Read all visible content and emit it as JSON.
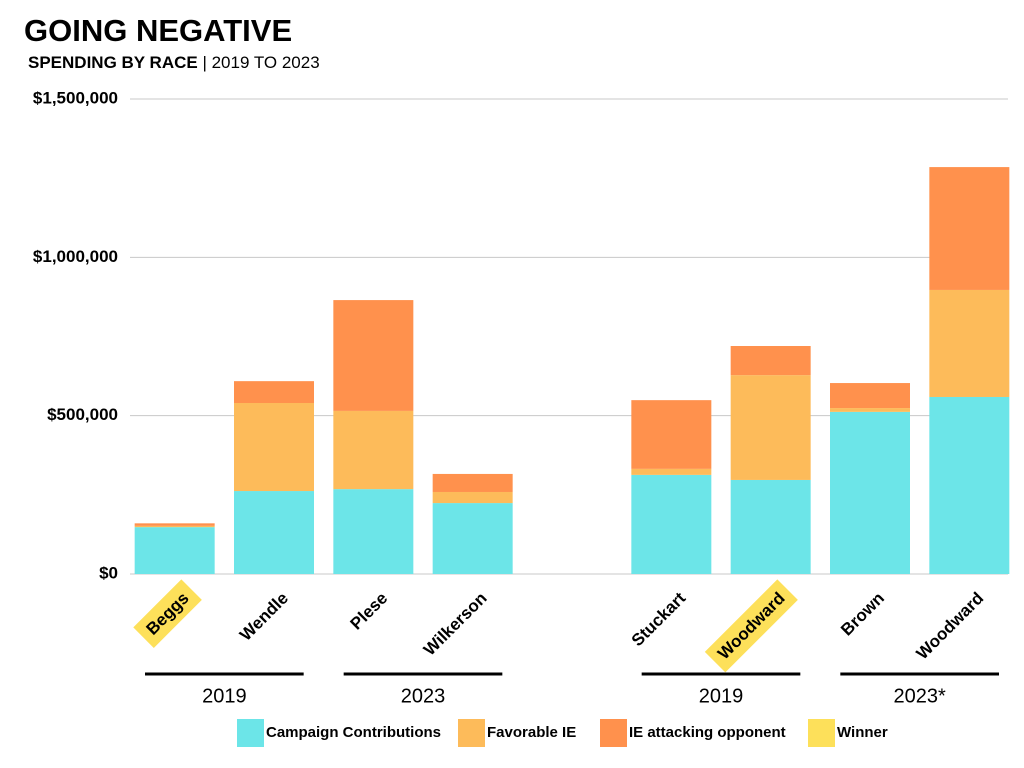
{
  "chart_data": {
    "type": "stacked_bar",
    "title": "GOING NEGATIVE",
    "subtitle": [
      "SPENDING BY RACE",
      "| 2019 TO 2023"
    ],
    "categories": [
      "Beggs",
      "Wendle",
      "Plese",
      "Wilkerson",
      null,
      "Stuckart",
      "Woodward",
      "Brown",
      "Woodward"
    ],
    "series": [
      {
        "name": "Campaign Contributions",
        "color": "#6ce5e8",
        "values": [
          148000,
          262000,
          268000,
          224000,
          0,
          313000,
          297000,
          512000,
          559000
        ]
      },
      {
        "name": "Favorable IE",
        "color": "#fdbb5a",
        "values": [
          4000,
          278000,
          247000,
          35000,
          0,
          19000,
          331000,
          12000,
          338000
        ]
      },
      {
        "name": "IE attacking opponent",
        "color": "#ff914d",
        "values": [
          8000,
          69000,
          350000,
          57000,
          0,
          217000,
          92000,
          79000,
          388000
        ]
      }
    ],
    "highlight": {
      "name": "Winner",
      "color": "#fde05a",
      "categories": [
        0,
        6
      ]
    },
    "groups": [
      {
        "label": "2019",
        "categories": [
          0,
          1
        ]
      },
      {
        "label": "2023",
        "categories": [
          2,
          3
        ]
      },
      {
        "label": "2019",
        "categories": [
          5,
          6
        ]
      },
      {
        "label": "2023*",
        "categories": [
          7,
          8
        ]
      }
    ],
    "ylim": [
      0,
      1500000
    ],
    "yticks": [
      {
        "value": 0,
        "label": "$0"
      },
      {
        "value": 500000,
        "label": "$500,000"
      },
      {
        "value": 1000000,
        "label": "$1,000,000"
      },
      {
        "value": 1500000,
        "label": "$1,500,000"
      }
    ],
    "grid": true
  }
}
